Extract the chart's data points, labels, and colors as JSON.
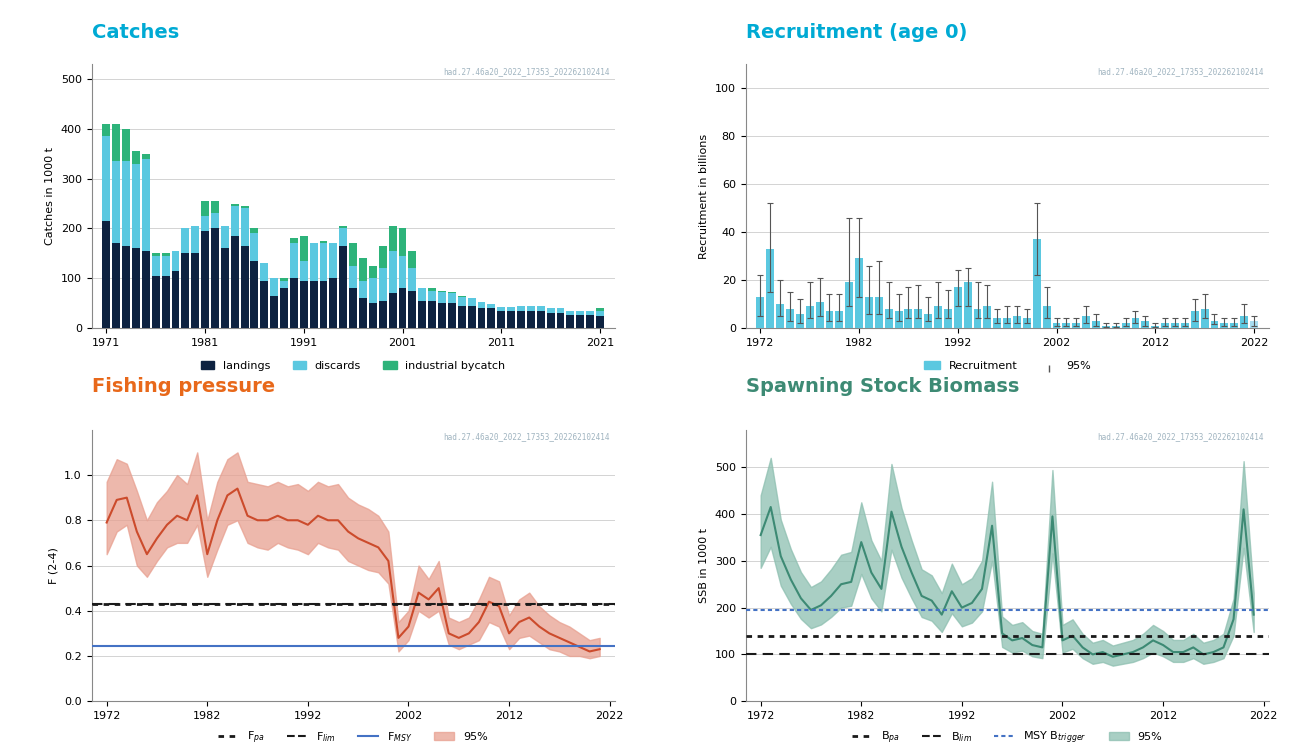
{
  "catches_years": [
    1971,
    1972,
    1973,
    1974,
    1975,
    1976,
    1977,
    1978,
    1979,
    1980,
    1981,
    1982,
    1983,
    1984,
    1985,
    1986,
    1987,
    1988,
    1989,
    1990,
    1991,
    1992,
    1993,
    1994,
    1995,
    1996,
    1997,
    1998,
    1999,
    2000,
    2001,
    2002,
    2003,
    2004,
    2005,
    2006,
    2007,
    2008,
    2009,
    2010,
    2011,
    2012,
    2013,
    2014,
    2015,
    2016,
    2017,
    2018,
    2019,
    2020,
    2021
  ],
  "landings": [
    215,
    170,
    165,
    160,
    155,
    105,
    105,
    115,
    150,
    150,
    195,
    200,
    160,
    185,
    165,
    135,
    95,
    65,
    80,
    100,
    95,
    95,
    95,
    100,
    165,
    80,
    60,
    50,
    55,
    70,
    80,
    75,
    55,
    55,
    50,
    50,
    45,
    45,
    40,
    40,
    35,
    35,
    35,
    35,
    35,
    30,
    30,
    27,
    27,
    27,
    25
  ],
  "discards": [
    170,
    165,
    170,
    170,
    185,
    40,
    40,
    40,
    50,
    55,
    30,
    30,
    45,
    60,
    75,
    55,
    35,
    35,
    15,
    70,
    40,
    75,
    75,
    70,
    35,
    45,
    35,
    50,
    65,
    85,
    65,
    45,
    25,
    20,
    22,
    20,
    18,
    15,
    12,
    8,
    8,
    8,
    10,
    10,
    10,
    10,
    10,
    8,
    8,
    8,
    10
  ],
  "industrial_bycatch": [
    25,
    75,
    65,
    25,
    10,
    5,
    5,
    0,
    0,
    0,
    30,
    25,
    0,
    5,
    5,
    10,
    0,
    0,
    5,
    10,
    50,
    0,
    5,
    0,
    5,
    45,
    45,
    25,
    45,
    50,
    55,
    35,
    0,
    5,
    2,
    2,
    2,
    0,
    0,
    0,
    0,
    0,
    0,
    0,
    0,
    0,
    0,
    0,
    0,
    0,
    5
  ],
  "recruit_years": [
    1972,
    1973,
    1974,
    1975,
    1976,
    1977,
    1978,
    1979,
    1980,
    1981,
    1982,
    1983,
    1984,
    1985,
    1986,
    1987,
    1988,
    1989,
    1990,
    1991,
    1992,
    1993,
    1994,
    1995,
    1996,
    1997,
    1998,
    1999,
    2000,
    2001,
    2002,
    2003,
    2004,
    2005,
    2006,
    2007,
    2008,
    2009,
    2010,
    2011,
    2012,
    2013,
    2014,
    2015,
    2016,
    2017,
    2018,
    2019,
    2020,
    2021,
    2022
  ],
  "recruitment": [
    13,
    33,
    10,
    8,
    6,
    9,
    11,
    7,
    7,
    19,
    29,
    13,
    13,
    8,
    7,
    8,
    8,
    6,
    9,
    8,
    17,
    19,
    8,
    9,
    4,
    4,
    5,
    4,
    37,
    9,
    2,
    2,
    2,
    5,
    3,
    1,
    1,
    2,
    4,
    3,
    1,
    2,
    2,
    2,
    7,
    8,
    3,
    2,
    2,
    5,
    3
  ],
  "recruit_lo": [
    5,
    15,
    5,
    3,
    2,
    4,
    5,
    3,
    3,
    9,
    13,
    6,
    6,
    4,
    3,
    4,
    4,
    3,
    4,
    4,
    9,
    9,
    4,
    4,
    2,
    2,
    2,
    2,
    22,
    4,
    1,
    1,
    1,
    2,
    1,
    0.5,
    0.5,
    1,
    2,
    1,
    0.5,
    1,
    1,
    1,
    3,
    4,
    1.5,
    1,
    1,
    2,
    1
  ],
  "recruit_hi": [
    22,
    52,
    20,
    15,
    12,
    19,
    21,
    14,
    14,
    46,
    46,
    26,
    28,
    19,
    14,
    17,
    18,
    13,
    19,
    16,
    24,
    25,
    19,
    18,
    8,
    9,
    9,
    8,
    52,
    17,
    4,
    4,
    4,
    9,
    6,
    2,
    2,
    4,
    7,
    5,
    2,
    4,
    4,
    4,
    12,
    14,
    6,
    4,
    4,
    10,
    5
  ],
  "recruit_shaded_year": 2022,
  "fp_years": [
    1972,
    1973,
    1974,
    1975,
    1976,
    1977,
    1978,
    1979,
    1980,
    1981,
    1982,
    1983,
    1984,
    1985,
    1986,
    1987,
    1988,
    1989,
    1990,
    1991,
    1992,
    1993,
    1994,
    1995,
    1996,
    1997,
    1998,
    1999,
    2000,
    2001,
    2002,
    2003,
    2004,
    2005,
    2006,
    2007,
    2008,
    2009,
    2010,
    2011,
    2012,
    2013,
    2014,
    2015,
    2016,
    2017,
    2018,
    2019,
    2020,
    2021
  ],
  "f_mean": [
    0.79,
    0.89,
    0.9,
    0.75,
    0.65,
    0.72,
    0.78,
    0.82,
    0.8,
    0.91,
    0.65,
    0.8,
    0.91,
    0.94,
    0.82,
    0.8,
    0.8,
    0.82,
    0.8,
    0.8,
    0.78,
    0.82,
    0.8,
    0.8,
    0.75,
    0.72,
    0.7,
    0.68,
    0.62,
    0.28,
    0.33,
    0.48,
    0.45,
    0.5,
    0.3,
    0.28,
    0.3,
    0.35,
    0.44,
    0.42,
    0.3,
    0.35,
    0.37,
    0.33,
    0.3,
    0.28,
    0.26,
    0.24,
    0.22,
    0.23
  ],
  "f_lo": [
    0.65,
    0.75,
    0.78,
    0.6,
    0.55,
    0.62,
    0.68,
    0.7,
    0.7,
    0.78,
    0.55,
    0.67,
    0.78,
    0.8,
    0.7,
    0.68,
    0.67,
    0.7,
    0.68,
    0.67,
    0.65,
    0.7,
    0.68,
    0.67,
    0.62,
    0.6,
    0.58,
    0.57,
    0.52,
    0.22,
    0.27,
    0.4,
    0.37,
    0.4,
    0.25,
    0.23,
    0.25,
    0.27,
    0.35,
    0.33,
    0.23,
    0.28,
    0.29,
    0.26,
    0.23,
    0.22,
    0.2,
    0.2,
    0.19,
    0.2
  ],
  "f_hi": [
    0.97,
    1.07,
    1.05,
    0.93,
    0.8,
    0.88,
    0.93,
    1.0,
    0.96,
    1.1,
    0.8,
    0.97,
    1.07,
    1.1,
    0.97,
    0.96,
    0.95,
    0.97,
    0.95,
    0.96,
    0.93,
    0.97,
    0.95,
    0.96,
    0.9,
    0.87,
    0.85,
    0.82,
    0.75,
    0.35,
    0.4,
    0.6,
    0.54,
    0.62,
    0.37,
    0.35,
    0.37,
    0.45,
    0.55,
    0.53,
    0.38,
    0.45,
    0.48,
    0.42,
    0.38,
    0.35,
    0.33,
    0.3,
    0.27,
    0.28
  ],
  "f_pa": 0.43,
  "f_lim": 0.43,
  "f_msy": 0.245,
  "ssb_years": [
    1972,
    1973,
    1974,
    1975,
    1976,
    1977,
    1978,
    1979,
    1980,
    1981,
    1982,
    1983,
    1984,
    1985,
    1986,
    1987,
    1988,
    1989,
    1990,
    1991,
    1992,
    1993,
    1994,
    1995,
    1996,
    1997,
    1998,
    1999,
    2000,
    2001,
    2002,
    2003,
    2004,
    2005,
    2006,
    2007,
    2008,
    2009,
    2010,
    2011,
    2012,
    2013,
    2014,
    2015,
    2016,
    2017,
    2018,
    2019,
    2020,
    2021
  ],
  "ssb_mean": [
    355,
    415,
    310,
    260,
    220,
    195,
    205,
    225,
    250,
    255,
    340,
    275,
    240,
    405,
    330,
    275,
    225,
    215,
    185,
    235,
    200,
    210,
    240,
    375,
    145,
    130,
    135,
    120,
    115,
    395,
    130,
    140,
    115,
    100,
    105,
    95,
    100,
    105,
    115,
    130,
    120,
    105,
    105,
    115,
    100,
    105,
    115,
    175,
    410,
    185
  ],
  "ssb_lo": [
    285,
    330,
    247,
    208,
    176,
    156,
    164,
    180,
    200,
    204,
    272,
    220,
    192,
    324,
    264,
    220,
    180,
    172,
    148,
    188,
    160,
    168,
    192,
    300,
    116,
    104,
    108,
    96,
    92,
    316,
    104,
    112,
    92,
    80,
    84,
    76,
    80,
    84,
    92,
    104,
    96,
    84,
    84,
    92,
    80,
    84,
    92,
    140,
    328,
    148
  ],
  "ssb_hi": [
    440,
    520,
    388,
    325,
    276,
    244,
    256,
    282,
    313,
    319,
    425,
    344,
    300,
    507,
    413,
    344,
    282,
    269,
    231,
    294,
    250,
    263,
    300,
    469,
    181,
    163,
    169,
    150,
    144,
    494,
    163,
    175,
    144,
    125,
    131,
    119,
    125,
    131,
    144,
    163,
    150,
    131,
    131,
    144,
    125,
    131,
    144,
    219,
    513,
    231
  ],
  "b_pa": 140,
  "b_lim": 100,
  "msyb_trigger": 195,
  "color_catches_landings": "#0d2240",
  "color_catches_discards": "#5bc8e0",
  "color_catches_industrial": "#2db37a",
  "color_recruitment": "#5bc8e0",
  "color_recruitment_shaded": "#a8ddf0",
  "color_fp_line": "#cc4b2c",
  "color_fp_fill": "#e8a090",
  "color_ssb_line": "#3d8a74",
  "color_ssb_fill": "#8dbfb0",
  "color_title_blue": "#00aad4",
  "color_title_orange": "#e8681a",
  "color_title_green": "#3d8a74",
  "color_ref_dotted": "#1a1a1a",
  "color_ref_dashed": "#1a1a1a",
  "color_fmsy_line": "#4472c4",
  "color_msybtrig_line": "#4472c4",
  "color_watermark": "#a0b4c0",
  "watermark": "had.27.46a20_2022_17353_202262102414"
}
